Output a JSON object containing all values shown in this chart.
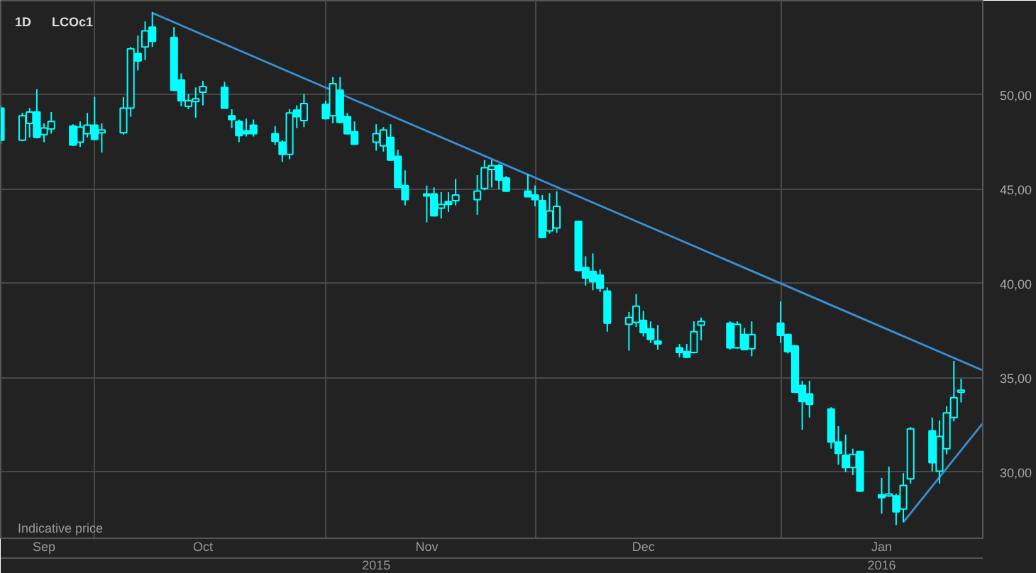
{
  "chart_data": {
    "type": "candlestick",
    "title": "LCOc1",
    "subtitle": "1D",
    "annotations": [
      "Indicative price"
    ],
    "color": "#00ffff",
    "x": [
      "2015-09-18",
      "2015-09-21",
      "2015-09-22",
      "2015-09-23",
      "2015-09-24",
      "2015-09-25",
      "2015-09-28",
      "2015-09-29",
      "2015-09-30",
      "2015-10-01",
      "2015-10-02",
      "2015-10-05",
      "2015-10-06",
      "2015-10-07",
      "2015-10-08",
      "2015-10-09",
      "2015-10-12",
      "2015-10-13",
      "2015-10-14",
      "2015-10-15",
      "2015-10-16",
      "2015-10-19",
      "2015-10-20",
      "2015-10-21",
      "2015-10-22",
      "2015-10-23",
      "2015-10-26",
      "2015-10-27",
      "2015-10-28",
      "2015-10-29",
      "2015-10-30",
      "2015-11-02",
      "2015-11-03",
      "2015-11-04",
      "2015-11-05",
      "2015-11-06",
      "2015-11-09",
      "2015-11-10",
      "2015-11-11",
      "2015-11-12",
      "2015-11-13",
      "2015-11-16",
      "2015-11-17",
      "2015-11-18",
      "2015-11-19",
      "2015-11-20",
      "2015-11-23",
      "2015-11-24",
      "2015-11-25",
      "2015-11-26",
      "2015-11-27",
      "2015-11-30",
      "2015-12-01",
      "2015-12-02",
      "2015-12-03",
      "2015-12-04",
      "2015-12-07",
      "2015-12-08",
      "2015-12-09",
      "2015-12-10",
      "2015-12-11",
      "2015-12-14",
      "2015-12-15",
      "2015-12-16",
      "2015-12-17",
      "2015-12-18",
      "2015-12-21",
      "2015-12-22",
      "2015-12-23",
      "2015-12-24",
      "2015-12-28",
      "2015-12-29",
      "2015-12-30",
      "2015-12-31",
      "2016-01-04",
      "2016-01-05",
      "2016-01-06",
      "2016-01-07",
      "2016-01-08",
      "2016-01-11",
      "2016-01-12",
      "2016-01-13",
      "2016-01-14",
      "2016-01-15",
      "2016-01-18",
      "2016-01-19",
      "2016-01-20",
      "2016-01-21",
      "2016-01-22",
      "2016-01-25",
      "2016-01-26",
      "2016-01-27",
      "2016-01-28",
      "2016-01-29"
    ],
    "ohlc": [
      [
        49.3,
        49.45,
        47.4,
        47.6
      ],
      [
        47.6,
        49.05,
        47.55,
        48.9
      ],
      [
        48.5,
        49.3,
        47.75,
        49.1
      ],
      [
        49.1,
        50.3,
        47.7,
        47.75
      ],
      [
        47.9,
        48.5,
        47.5,
        48.25
      ],
      [
        48.2,
        49.1,
        47.95,
        48.6
      ],
      [
        48.35,
        48.45,
        47.3,
        47.35
      ],
      [
        47.5,
        48.6,
        47.25,
        48.3
      ],
      [
        47.95,
        49.05,
        47.75,
        48.4
      ],
      [
        48.4,
        49.9,
        47.6,
        47.65
      ],
      [
        48.0,
        48.5,
        46.95,
        48.15
      ],
      [
        48.0,
        49.9,
        47.9,
        49.3
      ],
      [
        49.3,
        52.55,
        48.85,
        52.45
      ],
      [
        52.2,
        53.15,
        51.3,
        51.8
      ],
      [
        52.55,
        53.9,
        51.85,
        53.4
      ],
      [
        53.6,
        54.4,
        52.55,
        52.85
      ],
      [
        53.05,
        53.6,
        50.2,
        50.25
      ],
      [
        50.8,
        51.15,
        49.4,
        49.7
      ],
      [
        49.4,
        50.05,
        49.25,
        49.7
      ],
      [
        49.65,
        50.4,
        48.8,
        49.8
      ],
      [
        50.15,
        50.75,
        49.45,
        50.45
      ],
      [
        50.4,
        50.7,
        49.3,
        49.3
      ],
      [
        48.9,
        49.25,
        48.25,
        48.7
      ],
      [
        48.6,
        48.7,
        47.5,
        47.85
      ],
      [
        48.1,
        48.75,
        47.8,
        47.95
      ],
      [
        48.4,
        48.7,
        47.8,
        47.95
      ],
      [
        47.95,
        48.35,
        47.35,
        47.55
      ],
      [
        47.5,
        47.6,
        46.45,
        46.85
      ],
      [
        46.85,
        49.25,
        46.6,
        49.05
      ],
      [
        49.2,
        49.45,
        48.25,
        48.85
      ],
      [
        48.65,
        50.05,
        48.3,
        49.55
      ],
      [
        49.5,
        49.7,
        48.7,
        48.75
      ],
      [
        48.9,
        50.95,
        48.5,
        50.6
      ],
      [
        50.25,
        50.95,
        48.5,
        48.55
      ],
      [
        48.85,
        49.05,
        47.9,
        47.95
      ],
      [
        48.05,
        48.6,
        47.35,
        47.4
      ],
      [
        47.5,
        48.45,
        47.05,
        47.95
      ],
      [
        47.3,
        48.3,
        47.0,
        48.15
      ],
      [
        47.75,
        48.45,
        46.5,
        46.55
      ],
      [
        46.75,
        47.1,
        45.1,
        45.1
      ],
      [
        45.2,
        46.0,
        44.15,
        44.45
      ],
      [
        44.75,
        45.2,
        43.25,
        44.65
      ],
      [
        44.75,
        45.1,
        43.55,
        43.6
      ],
      [
        44.0,
        44.85,
        43.45,
        44.2
      ],
      [
        44.35,
        44.85,
        43.8,
        44.2
      ],
      [
        44.4,
        45.55,
        44.15,
        44.7
      ],
      [
        44.45,
        45.75,
        43.65,
        44.9
      ],
      [
        45.05,
        46.55,
        44.95,
        46.15
      ],
      [
        46.05,
        46.55,
        45.1,
        46.25
      ],
      [
        46.25,
        46.35,
        45.0,
        45.5
      ],
      [
        45.6,
        45.7,
        44.85,
        44.9
      ],
      [
        44.9,
        45.8,
        44.6,
        44.6
      ],
      [
        44.7,
        45.2,
        44.1,
        44.45
      ],
      [
        44.4,
        44.7,
        42.4,
        42.45
      ],
      [
        42.8,
        44.8,
        42.65,
        43.85
      ],
      [
        42.95,
        44.9,
        42.7,
        44.1
      ],
      [
        43.3,
        43.3,
        40.65,
        40.7
      ],
      [
        40.85,
        41.45,
        39.9,
        40.3
      ],
      [
        40.65,
        41.6,
        39.65,
        40.1
      ],
      [
        40.45,
        40.75,
        39.55,
        39.75
      ],
      [
        39.6,
        39.8,
        37.45,
        37.9
      ],
      [
        37.85,
        38.5,
        36.45,
        38.2
      ],
      [
        37.95,
        39.45,
        37.7,
        38.8
      ],
      [
        38.05,
        38.55,
        37.2,
        37.4
      ],
      [
        37.6,
        38.0,
        36.85,
        37.05
      ],
      [
        36.95,
        37.8,
        36.5,
        36.8
      ],
      [
        36.6,
        36.8,
        36.1,
        36.35
      ],
      [
        36.4,
        36.8,
        36.05,
        36.1
      ],
      [
        36.35,
        38.0,
        36.3,
        37.45
      ],
      [
        37.8,
        38.2,
        37.0,
        38.0
      ],
      [
        37.9,
        38.0,
        36.5,
        36.6
      ],
      [
        36.6,
        38.0,
        36.55,
        37.85
      ],
      [
        37.3,
        37.65,
        36.5,
        36.5
      ],
      [
        36.55,
        38.0,
        36.15,
        37.3
      ],
      [
        37.9,
        39.05,
        36.85,
        37.25
      ],
      [
        37.3,
        37.3,
        36.3,
        36.4
      ],
      [
        36.7,
        36.7,
        34.2,
        34.25
      ],
      [
        34.6,
        34.85,
        32.25,
        33.75
      ],
      [
        34.15,
        34.85,
        32.9,
        33.6
      ],
      [
        33.35,
        33.45,
        31.25,
        31.6
      ],
      [
        31.6,
        32.45,
        30.4,
        31.0
      ],
      [
        30.9,
        32.0,
        30.0,
        30.25
      ],
      [
        30.25,
        31.25,
        29.85,
        30.95
      ],
      [
        31.1,
        31.1,
        28.95,
        29.0
      ],
      [
        28.8,
        29.7,
        27.8,
        28.65
      ],
      [
        28.75,
        30.3,
        28.7,
        28.85
      ],
      [
        28.75,
        28.85,
        27.2,
        27.9
      ],
      [
        28.05,
        29.95,
        27.35,
        29.3
      ],
      [
        29.65,
        32.4,
        29.4,
        32.3
      ],
      [
        32.2,
        32.9,
        30.05,
        30.5
      ],
      [
        30.05,
        32.75,
        29.4,
        31.9
      ],
      [
        31.25,
        33.5,
        30.95,
        33.15
      ],
      [
        32.9,
        35.9,
        32.7,
        33.95
      ],
      [
        34.25,
        34.95,
        33.7,
        34.35
      ]
    ],
    "series": [
      {
        "type": "line",
        "color": "#3a8fd6",
        "x": [
          "2015-10-09",
          "2016-02-01"
        ],
        "values": [
          54.35,
          35.4
        ]
      },
      {
        "type": "line",
        "color": "#3a8fd6",
        "x": [
          "2016-01-21",
          "2016-02-01"
        ],
        "values": [
          27.35,
          32.6
        ]
      }
    ],
    "xlim": [
      "2015-09-18",
      "2016-02-01"
    ],
    "ylim": [
      26.5,
      55
    ],
    "xticks": [
      {
        "value": "2015-10-01",
        "label": null
      },
      {
        "value": "2015-11-02",
        "label": null
      },
      {
        "value": "2015-12-01",
        "label": null
      },
      {
        "value": "2016-01-04",
        "label": null
      },
      {
        "value": "2015-09-24",
        "label": "Sep"
      },
      {
        "value": "2015-10-16",
        "label": "Oct"
      },
      {
        "value": "2015-11-16",
        "label": "Nov"
      },
      {
        "value": "2015-12-16",
        "label": "Dec"
      },
      {
        "value": "2016-01-18",
        "label": "Jan"
      }
    ],
    "x2lim": [
      "2015-09-18",
      "2016-02-01"
    ],
    "x2ticks": [
      {
        "value": "2015-11-09",
        "label": "2015"
      },
      {
        "value": "2016-01-18",
        "label": "2016"
      }
    ],
    "yticks": [
      {
        "value": 30,
        "label": "30,00"
      },
      {
        "value": 35,
        "label": "35,00"
      },
      {
        "value": 40,
        "label": "40,00"
      },
      {
        "value": 45,
        "label": "45,00"
      },
      {
        "value": 50,
        "label": "50,00"
      }
    ],
    "grid": true
  }
}
